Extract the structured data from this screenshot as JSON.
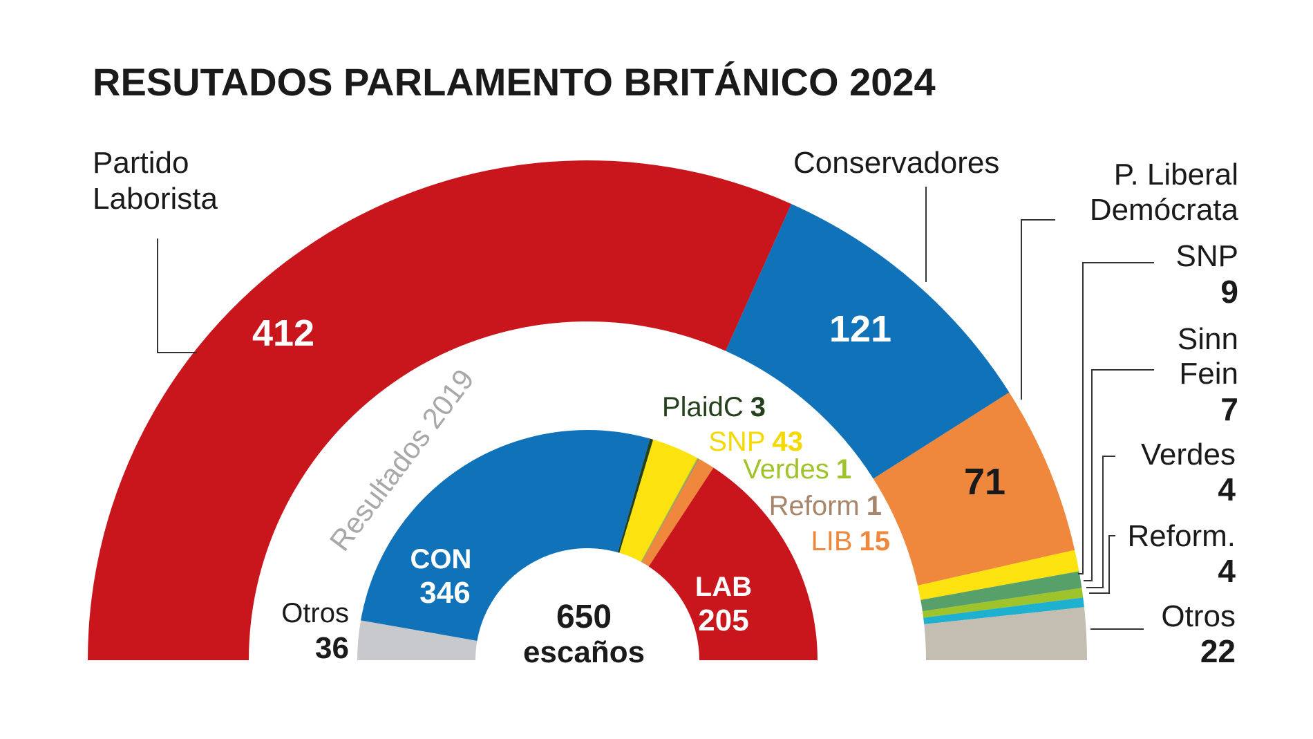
{
  "chart_data": [
    {
      "type": "pie",
      "variant": "semicircle-parliament",
      "title": "RESUTADOS PARLAMENTO BRITÁNICO 2024",
      "total_seats": 650,
      "series": [
        {
          "name": "Partido Laborista",
          "value": 412,
          "color": "#c8161c"
        },
        {
          "name": "Conservadores",
          "value": 121,
          "color": "#1072b8"
        },
        {
          "name": "P. Liberal Demócrata",
          "value": 71,
          "color": "#ef873c"
        },
        {
          "name": "SNP",
          "value": 9,
          "color": "#fce20e"
        },
        {
          "name": "Sinn Fein",
          "value": 7,
          "color": "#58a06a"
        },
        {
          "name": "Verdes",
          "value": 4,
          "color": "#9fc32a"
        },
        {
          "name": "Reform.",
          "value": 4,
          "color": "#1eb1cf"
        },
        {
          "name": "Otros",
          "value": 22,
          "color": "#c4bdb2"
        }
      ]
    },
    {
      "type": "pie",
      "variant": "semicircle-parliament",
      "title": "Resultados 2019",
      "total_seats": 650,
      "series": [
        {
          "name": "Otros",
          "value": 36,
          "color": "#c7c9cc"
        },
        {
          "name": "CON",
          "value": 346,
          "color": "#1072b8"
        },
        {
          "name": "PlaidC",
          "value": 3,
          "color": "#24401c"
        },
        {
          "name": "SNP",
          "value": 43,
          "color": "#fce20e"
        },
        {
          "name": "Verdes",
          "value": 1,
          "color": "#9fc32a"
        },
        {
          "name": "Reform",
          "value": 1,
          "color": "#a6856a"
        },
        {
          "name": "LIB",
          "value": 15,
          "color": "#ef873c"
        },
        {
          "name": "LAB",
          "value": 205,
          "color": "#c8161c"
        }
      ]
    }
  ],
  "labels": {
    "main_title": "RESUTADOS PARLAMENTO BRITÁNICO 2024",
    "outer": {
      "lab_name_1": "Partido",
      "lab_name_2": "Laborista",
      "lab_value": "412",
      "con_name": "Conservadores",
      "con_value": "121",
      "ld_name_1": "P. Liberal",
      "ld_name_2": "Demócrata",
      "ld_value": "71",
      "snp_name": "SNP",
      "snp_value": "9",
      "sf_name_1": "Sinn",
      "sf_name_2": "Fein",
      "sf_value": "7",
      "verdes_name": "Verdes",
      "verdes_value": "4",
      "reform_name": "Reform.",
      "reform_value": "4",
      "otros_name": "Otros",
      "otros_value": "22"
    },
    "inner": {
      "heading": "Resultados 2019",
      "total_value": "650",
      "total_unit": "escaños",
      "con_name": "CON",
      "con_value": "346",
      "lab_name": "LAB",
      "lab_value": "205",
      "otros_name": "Otros",
      "otros_value": "36",
      "plaid_name": "PlaidC",
      "plaid_value": "3",
      "snp_name": "SNP",
      "snp_value": "43",
      "verdes_name": "Verdes",
      "verdes_value": "1",
      "reform_name": "Reform",
      "reform_value": "1",
      "lib_name": "LIB",
      "lib_value": "15"
    }
  },
  "colors": {
    "text": "#1a1a1a",
    "leader": "#333333",
    "muted_heading": "#a8a8a8",
    "inner_plaid_text": "#24401c",
    "inner_snp_text": "#f5d800",
    "inner_verdes_text": "#9fc32a",
    "inner_reform_text": "#a6856a",
    "inner_lib_text": "#ef873c"
  }
}
